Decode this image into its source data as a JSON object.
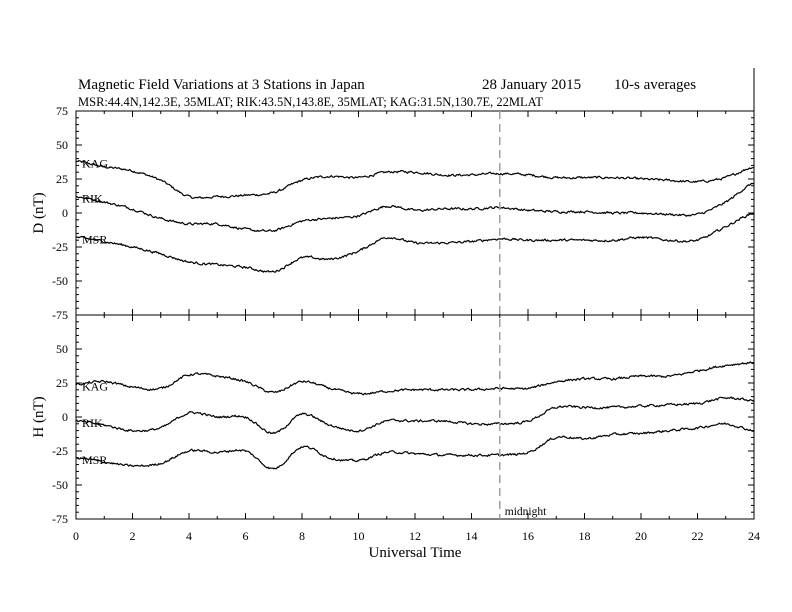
{
  "header": {
    "title": "Magnetic Field Variations at 3 Stations in Japan",
    "date": "28 January 2015",
    "averaging": "10-s averages",
    "stations": "MSR:44.4N,142.3E, 35MLAT;  RIK:43.5N,143.8E, 35MLAT;  KAG:31.5N,130.7E, 22MLAT"
  },
  "chart_data": [
    {
      "type": "line",
      "panel": "D",
      "ylabel": "D (nT)",
      "ylim": [
        -75,
        75
      ],
      "yticks": [
        75,
        50,
        25,
        0,
        -25,
        -50,
        -75
      ],
      "xlim": [
        0,
        24
      ],
      "x": [
        0,
        1,
        2,
        3,
        4,
        5,
        6,
        7,
        8,
        9,
        10,
        11,
        12,
        13,
        14,
        15,
        16,
        17,
        18,
        19,
        20,
        21,
        22,
        23,
        24
      ],
      "series": [
        {
          "name": "KAG",
          "values": [
            38,
            34,
            31,
            24,
            12,
            12,
            13,
            15,
            24,
            27,
            26,
            30,
            30,
            28,
            28,
            29,
            28,
            26,
            26,
            26,
            25,
            24,
            23,
            26,
            34
          ]
        },
        {
          "name": "RIK",
          "values": [
            12,
            8,
            3,
            -4,
            -8,
            -8,
            -12,
            -13,
            -6,
            -4,
            -2,
            5,
            2,
            3,
            3,
            4,
            2,
            1,
            1,
            0,
            0,
            -1,
            -1,
            8,
            22
          ]
        },
        {
          "name": "MSR",
          "values": [
            -18,
            -21,
            -25,
            -30,
            -36,
            -38,
            -40,
            -43,
            -33,
            -34,
            -28,
            -18,
            -22,
            -22,
            -21,
            -19,
            -20,
            -20,
            -20,
            -20,
            -18,
            -20,
            -20,
            -10,
            0
          ]
        }
      ]
    },
    {
      "type": "line",
      "panel": "H",
      "ylabel": "H (nT)",
      "ylim": [
        -75,
        75
      ],
      "yticks": [
        75,
        50,
        25,
        0,
        -25,
        -50,
        -75
      ],
      "xlim": [
        0,
        24
      ],
      "xticks": [
        0,
        2,
        4,
        6,
        8,
        10,
        12,
        14,
        16,
        18,
        20,
        22,
        24
      ],
      "xlabel": "Universal Time",
      "x": [
        0,
        1,
        2,
        3,
        4,
        5,
        6,
        7,
        8,
        9,
        10,
        11,
        12,
        13,
        14,
        15,
        16,
        17,
        18,
        19,
        20,
        21,
        22,
        23,
        24
      ],
      "series": [
        {
          "name": "KAG",
          "values": [
            24,
            26,
            22,
            21,
            31,
            30,
            26,
            18,
            26,
            21,
            17,
            19,
            20,
            20,
            20,
            21,
            21,
            26,
            28,
            28,
            30,
            30,
            34,
            38,
            40
          ]
        },
        {
          "name": "RIK",
          "values": [
            -3,
            -6,
            -10,
            -8,
            3,
            0,
            0,
            -12,
            2,
            -6,
            -10,
            -3,
            -3,
            -3,
            -5,
            -5,
            -3,
            7,
            7,
            7,
            8,
            9,
            10,
            14,
            12
          ]
        },
        {
          "name": "MSR",
          "values": [
            -30,
            -33,
            -36,
            -34,
            -25,
            -26,
            -25,
            -38,
            -22,
            -30,
            -32,
            -26,
            -27,
            -28,
            -28,
            -28,
            -26,
            -15,
            -16,
            -13,
            -12,
            -10,
            -8,
            -5,
            -10
          ]
        }
      ]
    }
  ],
  "annotation": {
    "midnight_label": "midnight",
    "midnight_x": 15
  }
}
